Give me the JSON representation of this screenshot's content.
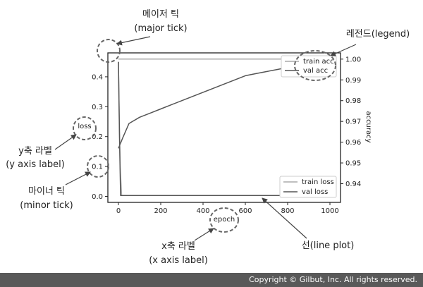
{
  "chart_data": [
    {
      "type": "line",
      "title": "",
      "xlabel": "epoch",
      "ylabel": "loss",
      "xlim": [
        -50,
        1050
      ],
      "ylim": [
        -0.02,
        0.48
      ],
      "x_ticks": [
        0,
        200,
        400,
        600,
        800,
        1000
      ],
      "x_tick_labels": [
        "0",
        "200",
        "400",
        "600",
        "800",
        "1000"
      ],
      "y_ticks": [
        0.0,
        0.1,
        0.2,
        0.3,
        0.4
      ],
      "y_tick_labels": [
        "0.0",
        "0.1",
        "0.2",
        "0.3",
        "0.4"
      ],
      "legend_position": "lower-right",
      "series": [
        {
          "name": "train loss",
          "color": "#aaaaaa",
          "x": [
            0,
            3,
            8,
            15,
            1000
          ],
          "y": [
            0.45,
            0.3,
            0.1,
            0.003,
            0.003
          ]
        },
        {
          "name": "val loss",
          "color": "#555555",
          "x": [
            0,
            5,
            10,
            1000
          ],
          "y": [
            0.45,
            0.2,
            0.003,
            0.003
          ]
        }
      ]
    },
    {
      "type": "line",
      "title": "",
      "xlabel": "epoch",
      "ylabel": "accuracy",
      "xlim": [
        -50,
        1050
      ],
      "ylim": [
        0.931,
        1.003
      ],
      "y_ticks": [
        0.94,
        0.95,
        0.96,
        0.97,
        0.98,
        0.99,
        1.0
      ],
      "y_tick_labels": [
        "0.94",
        "0.95",
        "0.96",
        "0.97",
        "0.98",
        "0.99",
        "1.00"
      ],
      "legend_position": "upper-right",
      "series": [
        {
          "name": "train acc",
          "color": "#aaaaaa",
          "x": [
            0,
            1000
          ],
          "y": [
            1.0,
            1.0
          ]
        },
        {
          "name": "val acc",
          "color": "#555555",
          "x": [
            0,
            20,
            50,
            100,
            150,
            200,
            250,
            300,
            350,
            400,
            450,
            500,
            550,
            600,
            650,
            700,
            750,
            800,
            850,
            900,
            950,
            1000
          ],
          "y": [
            0.957,
            0.962,
            0.969,
            0.972,
            0.974,
            0.976,
            0.978,
            0.98,
            0.982,
            0.984,
            0.986,
            0.988,
            0.99,
            0.992,
            0.993,
            0.994,
            0.995,
            0.996,
            0.997,
            0.998,
            0.998,
            0.998
          ]
        }
      ]
    }
  ],
  "annotations": {
    "major_tick": {
      "ko": "메이저 틱",
      "en": "(major tick)"
    },
    "legend": "레전드(legend)",
    "y_axis_label": {
      "ko": "y축 라벨",
      "en": "(y axis label)"
    },
    "minor_tick": {
      "ko": "마이너 틱",
      "en": "(minor tick)"
    },
    "x_axis_label": {
      "ko": "x축 라벨",
      "en": "(x axis label)"
    },
    "line_plot": "선(line plot)"
  },
  "footer": {
    "copyright": "Copyright © Gilbut, Inc. All rights reserved."
  }
}
